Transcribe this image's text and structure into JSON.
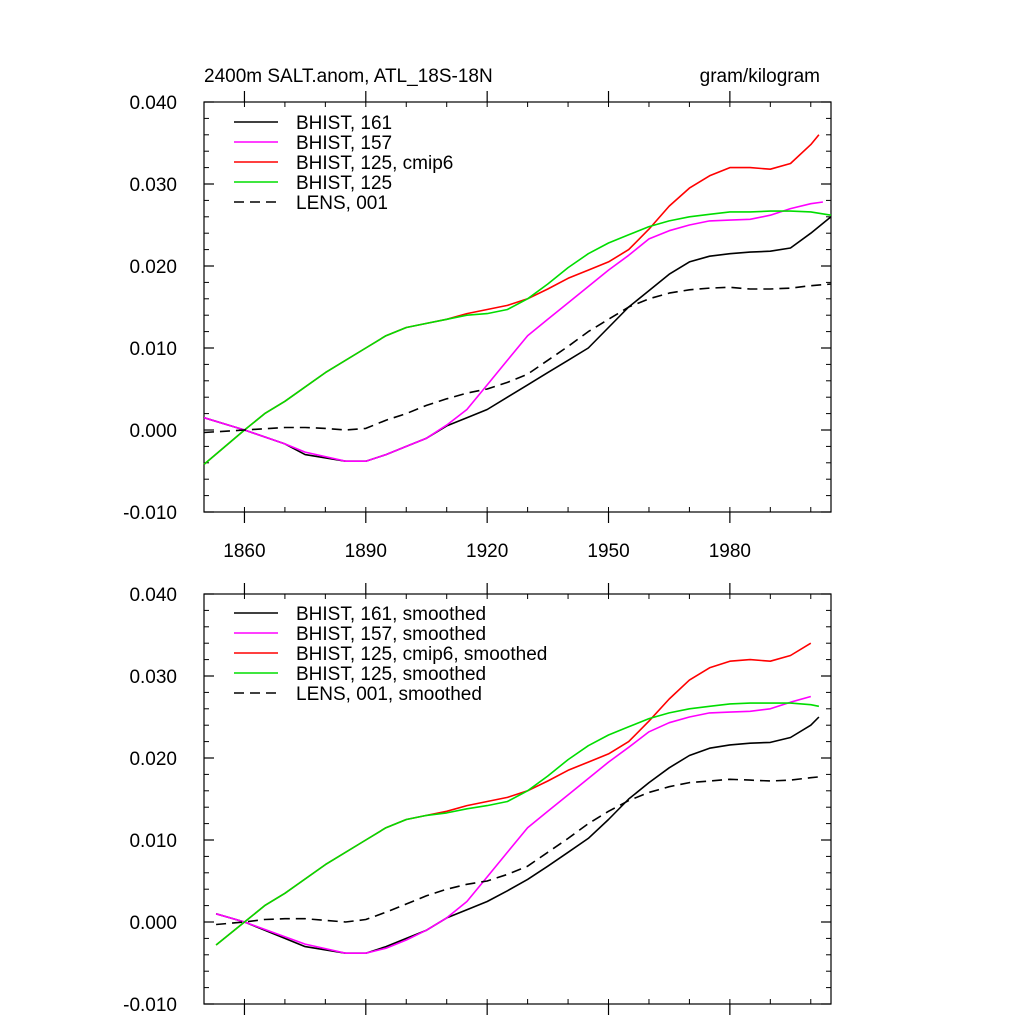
{
  "chart_data": [
    {
      "type": "line",
      "title": "2400m SALT.anom, ATL_18S-18N",
      "units": "gram/kilogram",
      "xlabel": "",
      "ylabel": "",
      "xlim": [
        1850,
        2005
      ],
      "ylim": [
        -0.01,
        0.04
      ],
      "xticks": [
        1860,
        1890,
        1920,
        1950,
        1980
      ],
      "xtick_labels": [
        "1860",
        "1890",
        "1920",
        "1950",
        "1980"
      ],
      "yticks": [
        -0.01,
        0.0,
        0.01,
        0.02,
        0.03,
        0.04
      ],
      "ytick_labels": [
        "-0.010",
        "0.000",
        "0.010",
        "0.020",
        "0.030",
        "0.040"
      ],
      "legend_position": "top-left",
      "series": [
        {
          "name": "BHIST, 161",
          "color": "#000000",
          "dash": "solid",
          "x": [
            1850,
            1860,
            1870,
            1875,
            1885,
            1890,
            1895,
            1900,
            1905,
            1910,
            1915,
            1920,
            1925,
            1930,
            1935,
            1940,
            1945,
            1950,
            1955,
            1960,
            1965,
            1970,
            1975,
            1980,
            1985,
            1990,
            1995,
            2000,
            2005
          ],
          "y": [
            0.0015,
            0.0,
            -0.0017,
            -0.003,
            -0.0038,
            -0.0038,
            -0.003,
            -0.002,
            -0.001,
            0.0005,
            0.0015,
            0.0025,
            0.004,
            0.0055,
            0.007,
            0.0085,
            0.01,
            0.0125,
            0.015,
            0.017,
            0.019,
            0.0205,
            0.0212,
            0.0215,
            0.0217,
            0.0218,
            0.0222,
            0.024,
            0.026
          ]
        },
        {
          "name": "BHIST, 157",
          "color": "#ff00ff",
          "dash": "solid",
          "x": [
            1850,
            1860,
            1870,
            1875,
            1885,
            1890,
            1895,
            1900,
            1905,
            1910,
            1915,
            1920,
            1925,
            1930,
            1935,
            1940,
            1945,
            1950,
            1955,
            1960,
            1965,
            1970,
            1975,
            1980,
            1985,
            1990,
            1995,
            2000,
            2003
          ],
          "y": [
            0.0015,
            0.0,
            -0.0017,
            -0.0027,
            -0.0038,
            -0.0038,
            -0.003,
            -0.002,
            -0.001,
            0.0006,
            0.0025,
            0.0055,
            0.0085,
            0.0115,
            0.0135,
            0.0155,
            0.0175,
            0.0195,
            0.0213,
            0.0233,
            0.0243,
            0.025,
            0.0255,
            0.0256,
            0.0257,
            0.0262,
            0.027,
            0.0276,
            0.0278
          ]
        },
        {
          "name": "BHIST, 125, cmip6",
          "color": "#ff0000",
          "dash": "solid",
          "x": [
            1850,
            1860,
            1865,
            1870,
            1880,
            1890,
            1895,
            1900,
            1905,
            1910,
            1915,
            1920,
            1925,
            1930,
            1935,
            1940,
            1945,
            1950,
            1955,
            1960,
            1965,
            1970,
            1975,
            1980,
            1985,
            1990,
            1995,
            2000,
            2002
          ],
          "y": [
            -0.0042,
            0.0,
            0.002,
            0.0035,
            0.007,
            0.01,
            0.0115,
            0.0125,
            0.013,
            0.0135,
            0.0142,
            0.0147,
            0.0152,
            0.016,
            0.0172,
            0.0185,
            0.0195,
            0.0205,
            0.022,
            0.0245,
            0.0273,
            0.0295,
            0.031,
            0.032,
            0.032,
            0.0318,
            0.0325,
            0.0348,
            0.036
          ]
        },
        {
          "name": "BHIST, 125",
          "color": "#00dd00",
          "dash": "solid",
          "x": [
            1850,
            1860,
            1865,
            1870,
            1880,
            1890,
            1895,
            1900,
            1905,
            1910,
            1915,
            1920,
            1925,
            1930,
            1935,
            1940,
            1945,
            1950,
            1955,
            1960,
            1965,
            1970,
            1975,
            1980,
            1985,
            1990,
            1995,
            2000,
            2005
          ],
          "y": [
            -0.0042,
            0.0,
            0.002,
            0.0035,
            0.007,
            0.01,
            0.0115,
            0.0125,
            0.013,
            0.0135,
            0.014,
            0.0142,
            0.0147,
            0.016,
            0.0178,
            0.0198,
            0.0215,
            0.0228,
            0.0238,
            0.0248,
            0.0255,
            0.026,
            0.0263,
            0.0266,
            0.0266,
            0.0267,
            0.0267,
            0.0266,
            0.0262
          ]
        },
        {
          "name": "LENS, 001",
          "color": "#000000",
          "dash": "dashed",
          "x": [
            1850,
            1860,
            1870,
            1875,
            1880,
            1885,
            1890,
            1895,
            1900,
            1905,
            1910,
            1915,
            1920,
            1925,
            1930,
            1935,
            1940,
            1945,
            1950,
            1955,
            1960,
            1965,
            1970,
            1975,
            1980,
            1985,
            1990,
            1995,
            2000,
            2005
          ],
          "y": [
            -0.0003,
            0.0,
            0.0003,
            0.0003,
            0.0002,
            0.0,
            0.0002,
            0.0012,
            0.002,
            0.003,
            0.0038,
            0.0045,
            0.005,
            0.0058,
            0.0068,
            0.0085,
            0.0102,
            0.012,
            0.0135,
            0.015,
            0.016,
            0.0167,
            0.0171,
            0.0173,
            0.0174,
            0.0172,
            0.0172,
            0.0173,
            0.0176,
            0.0178
          ]
        }
      ]
    },
    {
      "type": "line",
      "title": "",
      "xlabel": "",
      "ylabel": "",
      "xlim": [
        1850,
        2005
      ],
      "ylim": [
        -0.01,
        0.04
      ],
      "xticks": [
        1860,
        1890,
        1920,
        1950,
        1980
      ],
      "yticks": [
        -0.01,
        0.0,
        0.01,
        0.02,
        0.03,
        0.04
      ],
      "ytick_labels": [
        "-0.010",
        "0.000",
        "0.010",
        "0.020",
        "0.030",
        "0.040"
      ],
      "legend_position": "top-left",
      "series": [
        {
          "name": "BHIST, 161, smoothed",
          "color": "#000000",
          "dash": "solid",
          "x": [
            1853,
            1860,
            1870,
            1875,
            1885,
            1890,
            1895,
            1900,
            1905,
            1910,
            1915,
            1920,
            1925,
            1930,
            1935,
            1940,
            1945,
            1950,
            1955,
            1960,
            1965,
            1970,
            1975,
            1980,
            1985,
            1990,
            1995,
            2000,
            2002
          ],
          "y": [
            0.001,
            0.0,
            -0.002,
            -0.003,
            -0.0038,
            -0.0038,
            -0.003,
            -0.002,
            -0.001,
            0.0005,
            0.0015,
            0.0025,
            0.0038,
            0.0052,
            0.0068,
            0.0085,
            0.0102,
            0.0125,
            0.015,
            0.017,
            0.0188,
            0.0203,
            0.0212,
            0.0216,
            0.0218,
            0.0219,
            0.0225,
            0.024,
            0.025
          ]
        },
        {
          "name": "BHIST, 157, smoothed",
          "color": "#ff00ff",
          "dash": "solid",
          "x": [
            1853,
            1860,
            1870,
            1875,
            1885,
            1890,
            1895,
            1900,
            1905,
            1910,
            1915,
            1920,
            1925,
            1930,
            1935,
            1940,
            1945,
            1950,
            1955,
            1960,
            1965,
            1970,
            1975,
            1980,
            1985,
            1990,
            1995,
            2000
          ],
          "y": [
            0.001,
            0.0,
            -0.0018,
            -0.0027,
            -0.0038,
            -0.0038,
            -0.0032,
            -0.0022,
            -0.001,
            0.0005,
            0.0025,
            0.0055,
            0.0085,
            0.0115,
            0.0135,
            0.0155,
            0.0175,
            0.0195,
            0.0213,
            0.0232,
            0.0243,
            0.025,
            0.0255,
            0.0256,
            0.0257,
            0.026,
            0.0268,
            0.0275
          ]
        },
        {
          "name": "BHIST, 125, cmip6, smoothed",
          "color": "#ff0000",
          "dash": "solid",
          "x": [
            1853,
            1860,
            1865,
            1870,
            1880,
            1890,
            1895,
            1900,
            1905,
            1910,
            1915,
            1920,
            1925,
            1930,
            1935,
            1940,
            1945,
            1950,
            1955,
            1960,
            1965,
            1970,
            1975,
            1980,
            1985,
            1990,
            1995,
            2000
          ],
          "y": [
            -0.0028,
            0.0,
            0.002,
            0.0035,
            0.007,
            0.01,
            0.0115,
            0.0125,
            0.013,
            0.0135,
            0.0142,
            0.0147,
            0.0152,
            0.016,
            0.0172,
            0.0185,
            0.0195,
            0.0205,
            0.022,
            0.0245,
            0.0272,
            0.0295,
            0.031,
            0.0318,
            0.032,
            0.0318,
            0.0325,
            0.034
          ]
        },
        {
          "name": "BHIST, 125, smoothed",
          "color": "#00dd00",
          "dash": "solid",
          "x": [
            1853,
            1860,
            1865,
            1870,
            1880,
            1890,
            1895,
            1900,
            1905,
            1910,
            1915,
            1920,
            1925,
            1930,
            1935,
            1940,
            1945,
            1950,
            1955,
            1960,
            1965,
            1970,
            1975,
            1980,
            1985,
            1990,
            1995,
            2000,
            2002
          ],
          "y": [
            -0.0028,
            0.0,
            0.002,
            0.0035,
            0.007,
            0.01,
            0.0115,
            0.0125,
            0.013,
            0.0133,
            0.0138,
            0.0142,
            0.0147,
            0.016,
            0.0178,
            0.0198,
            0.0215,
            0.0228,
            0.0238,
            0.0248,
            0.0255,
            0.026,
            0.0263,
            0.0266,
            0.0267,
            0.0267,
            0.0267,
            0.0265,
            0.0263
          ]
        },
        {
          "name": "LENS, 001, smoothed",
          "color": "#000000",
          "dash": "dashed",
          "x": [
            1853,
            1860,
            1865,
            1870,
            1875,
            1880,
            1885,
            1890,
            1895,
            1900,
            1905,
            1910,
            1915,
            1920,
            1925,
            1930,
            1935,
            1940,
            1945,
            1950,
            1955,
            1960,
            1965,
            1970,
            1975,
            1980,
            1985,
            1990,
            1995,
            2000,
            2002
          ],
          "y": [
            -0.0003,
            0.0,
            0.0003,
            0.0004,
            0.0004,
            0.0002,
            0.0,
            0.0003,
            0.0012,
            0.0022,
            0.0032,
            0.004,
            0.0046,
            0.005,
            0.0058,
            0.0068,
            0.0085,
            0.0102,
            0.012,
            0.0135,
            0.0148,
            0.0158,
            0.0165,
            0.017,
            0.0172,
            0.0174,
            0.0173,
            0.0172,
            0.0173,
            0.0176,
            0.0177
          ]
        }
      ]
    }
  ]
}
